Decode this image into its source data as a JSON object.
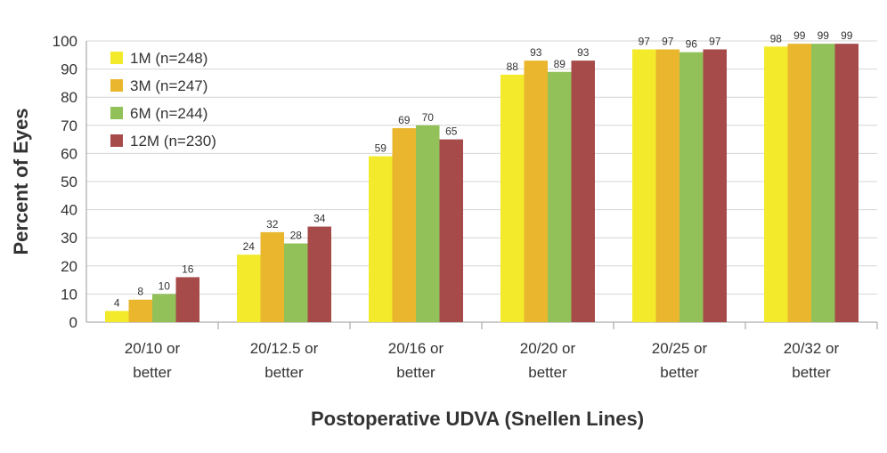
{
  "chart_data": {
    "type": "bar",
    "title": "",
    "xlabel": "Postoperative UDVA (Snellen Lines)",
    "ylabel": "Percent of Eyes",
    "ylim": [
      0,
      100
    ],
    "yticks": [
      0,
      10,
      20,
      30,
      40,
      50,
      60,
      70,
      80,
      90,
      100
    ],
    "grid": true,
    "legend_position": "top-left",
    "categories": [
      [
        "20/10 or",
        "better"
      ],
      [
        "20/12.5 or",
        "better"
      ],
      [
        "20/16 or",
        "better"
      ],
      [
        "20/20 or",
        "better"
      ],
      [
        "20/25 or",
        "better"
      ],
      [
        "20/32 or",
        "better"
      ]
    ],
    "series": [
      {
        "name": "1M (n=248)",
        "color": "#f2ea2b",
        "values": [
          4,
          24,
          59,
          88,
          97,
          98
        ]
      },
      {
        "name": "3M (n=247)",
        "color": "#e9b62e",
        "values": [
          8,
          32,
          69,
          93,
          97,
          99
        ]
      },
      {
        "name": "6M (n=244)",
        "color": "#92c15a",
        "values": [
          10,
          28,
          70,
          89,
          96,
          99
        ]
      },
      {
        "name": "12M (n=230)",
        "color": "#a64a4a",
        "values": [
          16,
          34,
          65,
          93,
          97,
          99
        ]
      }
    ]
  }
}
